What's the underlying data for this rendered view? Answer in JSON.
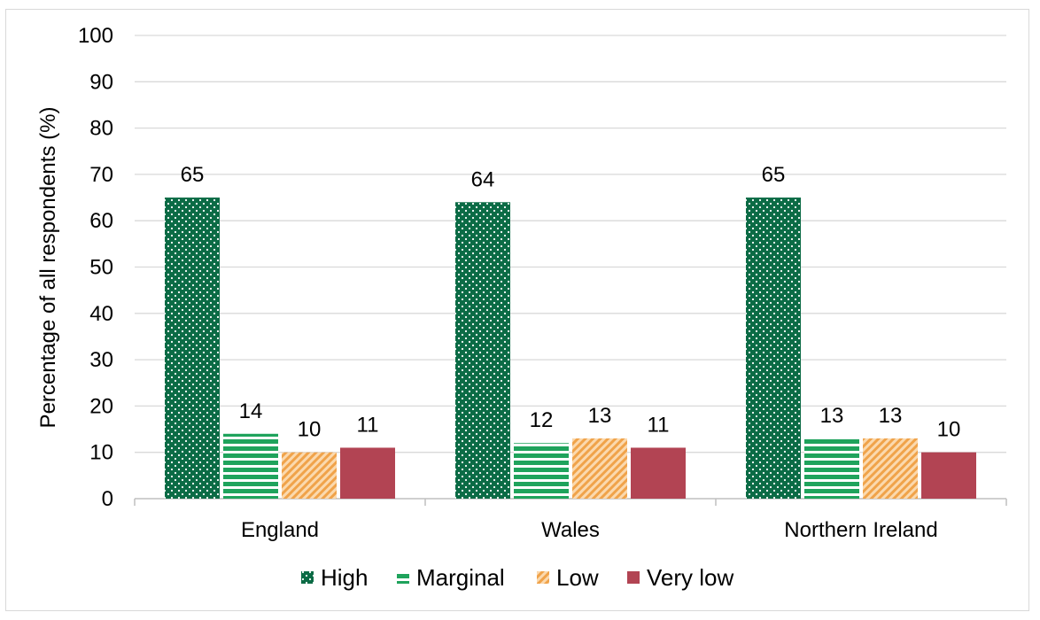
{
  "chart_data": {
    "type": "bar",
    "categories": [
      "England",
      "Wales",
      "Northern Ireland"
    ],
    "series": [
      {
        "name": "High",
        "values": [
          65,
          64,
          65
        ],
        "color": "#0b6b45",
        "pattern": "dots"
      },
      {
        "name": "Marginal",
        "values": [
          14,
          12,
          13
        ],
        "color": "#1fa35c",
        "pattern": "horizontal-stripes"
      },
      {
        "name": "Low",
        "values": [
          10,
          13,
          13
        ],
        "color": "#f0a34a",
        "pattern": "diagonal-stripes"
      },
      {
        "name": "Very low",
        "values": [
          11,
          11,
          10
        ],
        "color": "#b24453",
        "pattern": "solid"
      }
    ],
    "data_label_values": [
      65,
      64,
      65,
      14,
      12,
      13,
      10,
      13,
      13,
      11,
      11,
      10
    ],
    "xlabel": "",
    "ylabel": "Percentage of all respondents (%)",
    "ylim": [
      0,
      100
    ],
    "yticks": [
      0,
      10,
      20,
      30,
      40,
      50,
      60,
      70,
      80,
      90,
      100
    ],
    "grid": true,
    "legend_position": "bottom"
  }
}
